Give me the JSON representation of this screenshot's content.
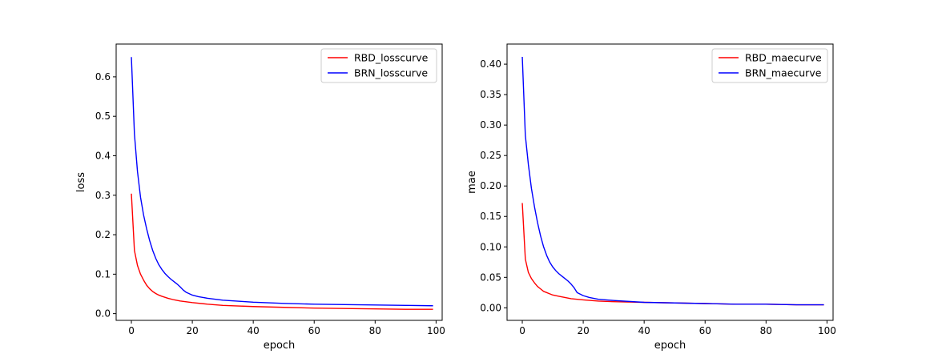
{
  "chart_data": [
    {
      "type": "line",
      "xlabel": "epoch",
      "ylabel": "loss",
      "xlim": [
        -5,
        102
      ],
      "ylim": [
        -0.017,
        0.683
      ],
      "xticks": [
        0,
        20,
        40,
        60,
        80,
        100
      ],
      "yticks": [
        0.0,
        0.1,
        0.2,
        0.3,
        0.4,
        0.5,
        0.6
      ],
      "ytick_labels": [
        "0.0",
        "0.1",
        "0.2",
        "0.3",
        "0.4",
        "0.5",
        "0.6"
      ],
      "grid": false,
      "legend_position": "top-right",
      "series": [
        {
          "name": "RBD_losscurve",
          "color": "#ff0000",
          "x": [
            0,
            1,
            2,
            3,
            4,
            5,
            6,
            7,
            8,
            9,
            10,
            12,
            14,
            16,
            18,
            20,
            25,
            30,
            40,
            50,
            60,
            70,
            80,
            90,
            99
          ],
          "y": [
            0.304,
            0.16,
            0.122,
            0.1,
            0.085,
            0.072,
            0.063,
            0.056,
            0.051,
            0.047,
            0.044,
            0.039,
            0.035,
            0.032,
            0.03,
            0.028,
            0.024,
            0.021,
            0.018,
            0.016,
            0.014,
            0.013,
            0.012,
            0.011,
            0.011
          ]
        },
        {
          "name": "BRN_losscurve",
          "color": "#0000ff",
          "x": [
            0,
            1,
            2,
            3,
            4,
            5,
            6,
            7,
            8,
            9,
            10,
            11,
            12,
            13,
            14,
            15,
            16,
            17,
            18,
            20,
            22,
            25,
            30,
            40,
            50,
            60,
            70,
            80,
            90,
            99
          ],
          "y": [
            0.65,
            0.455,
            0.36,
            0.295,
            0.25,
            0.215,
            0.185,
            0.16,
            0.14,
            0.124,
            0.112,
            0.102,
            0.094,
            0.087,
            0.081,
            0.075,
            0.068,
            0.06,
            0.054,
            0.047,
            0.043,
            0.039,
            0.034,
            0.029,
            0.026,
            0.024,
            0.023,
            0.022,
            0.021,
            0.02
          ]
        }
      ]
    },
    {
      "type": "line",
      "xlabel": "epoch",
      "ylabel": "mae",
      "xlim": [
        -5,
        102
      ],
      "ylim": [
        -0.0206,
        0.433
      ],
      "xticks": [
        0,
        20,
        40,
        60,
        80,
        100
      ],
      "yticks": [
        0.0,
        0.05,
        0.1,
        0.15,
        0.2,
        0.25,
        0.3,
        0.35,
        0.4
      ],
      "ytick_labels": [
        "0.00",
        "0.05",
        "0.10",
        "0.15",
        "0.20",
        "0.25",
        "0.30",
        "0.35",
        "0.40"
      ],
      "grid": false,
      "legend_position": "top-right",
      "series": [
        {
          "name": "RBD_maecurve",
          "color": "#ff0000",
          "x": [
            0,
            1,
            2,
            3,
            4,
            5,
            6,
            7,
            8,
            9,
            10,
            12,
            14,
            16,
            18,
            20,
            25,
            30,
            40,
            50,
            60,
            70,
            80,
            90,
            99
          ],
          "y": [
            0.172,
            0.08,
            0.058,
            0.048,
            0.041,
            0.035,
            0.031,
            0.027,
            0.025,
            0.023,
            0.021,
            0.019,
            0.017,
            0.015,
            0.014,
            0.013,
            0.011,
            0.01,
            0.009,
            0.008,
            0.007,
            0.006,
            0.006,
            0.005,
            0.005
          ]
        },
        {
          "name": "BRN_maecurve",
          "color": "#0000ff",
          "x": [
            0,
            1,
            2,
            3,
            4,
            5,
            6,
            7,
            8,
            9,
            10,
            11,
            12,
            13,
            14,
            15,
            16,
            17,
            18,
            20,
            22,
            25,
            30,
            40,
            50,
            60,
            70,
            80,
            90,
            99
          ],
          "y": [
            0.412,
            0.283,
            0.235,
            0.196,
            0.166,
            0.14,
            0.118,
            0.1,
            0.086,
            0.075,
            0.067,
            0.061,
            0.056,
            0.052,
            0.048,
            0.044,
            0.039,
            0.033,
            0.025,
            0.02,
            0.017,
            0.014,
            0.012,
            0.009,
            0.008,
            0.007,
            0.006,
            0.006,
            0.005,
            0.005
          ]
        }
      ]
    }
  ]
}
